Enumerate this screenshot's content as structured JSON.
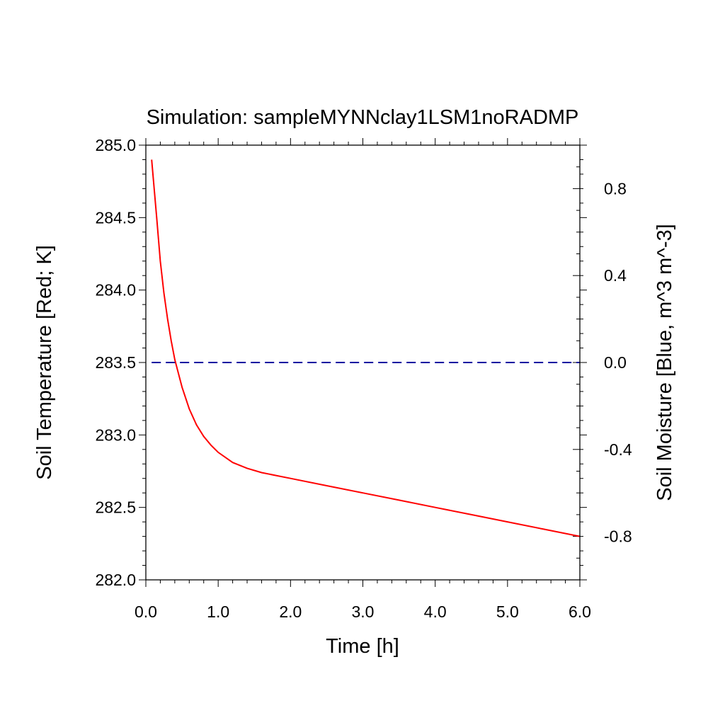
{
  "chart_data": {
    "type": "line",
    "title": "Simulation: sampleMYNNclay1LSM1noRADMP",
    "xlabel": "Time [h]",
    "ylabel_left": "Soil Temperature [Red; K]",
    "ylabel_right": "Soil Moisture [Blue, m^3 m^-3]",
    "xlim": [
      0,
      6
    ],
    "ylim_left": [
      282.0,
      285.0
    ],
    "ylim_right": [
      -1.0,
      1.0
    ],
    "x_ticks": [
      0.0,
      1.0,
      2.0,
      3.0,
      4.0,
      5.0,
      6.0
    ],
    "x_tick_labels": [
      "0.0",
      "1.0",
      "2.0",
      "3.0",
      "4.0",
      "5.0",
      "6.0"
    ],
    "y_left_ticks": [
      282.0,
      282.5,
      283.0,
      283.5,
      284.0,
      284.5,
      285.0
    ],
    "y_left_tick_labels": [
      "282.0",
      "282.5",
      "283.0",
      "283.5",
      "284.0",
      "284.5",
      "285.0"
    ],
    "y_right_ticks": [
      -0.8,
      -0.4,
      0.0,
      0.4,
      0.8
    ],
    "y_right_tick_labels": [
      "-0.8",
      "-0.4",
      "0.0",
      "0.4",
      "0.8"
    ],
    "grid": false,
    "legend": "none",
    "series": [
      {
        "axis": "left",
        "color": "#ff0000",
        "style": "solid",
        "x": [
          0.08,
          0.15,
          0.2,
          0.25,
          0.3,
          0.35,
          0.4,
          0.5,
          0.6,
          0.7,
          0.8,
          0.9,
          1.0,
          1.2,
          1.4,
          1.6,
          1.8,
          2.0,
          2.5,
          3.0,
          3.5,
          4.0,
          4.5,
          5.0,
          5.5,
          6.0
        ],
        "y": [
          284.9,
          284.5,
          284.2,
          283.98,
          283.8,
          283.65,
          283.52,
          283.33,
          283.18,
          283.07,
          282.99,
          282.93,
          282.88,
          282.81,
          282.77,
          282.74,
          282.72,
          282.7,
          282.65,
          282.6,
          282.55,
          282.5,
          282.45,
          282.4,
          282.35,
          282.3
        ]
      },
      {
        "axis": "right",
        "color": "#0000a0",
        "style": "dashed",
        "x": [
          0.08,
          6.0
        ],
        "y": [
          0.0,
          0.0
        ]
      }
    ]
  }
}
